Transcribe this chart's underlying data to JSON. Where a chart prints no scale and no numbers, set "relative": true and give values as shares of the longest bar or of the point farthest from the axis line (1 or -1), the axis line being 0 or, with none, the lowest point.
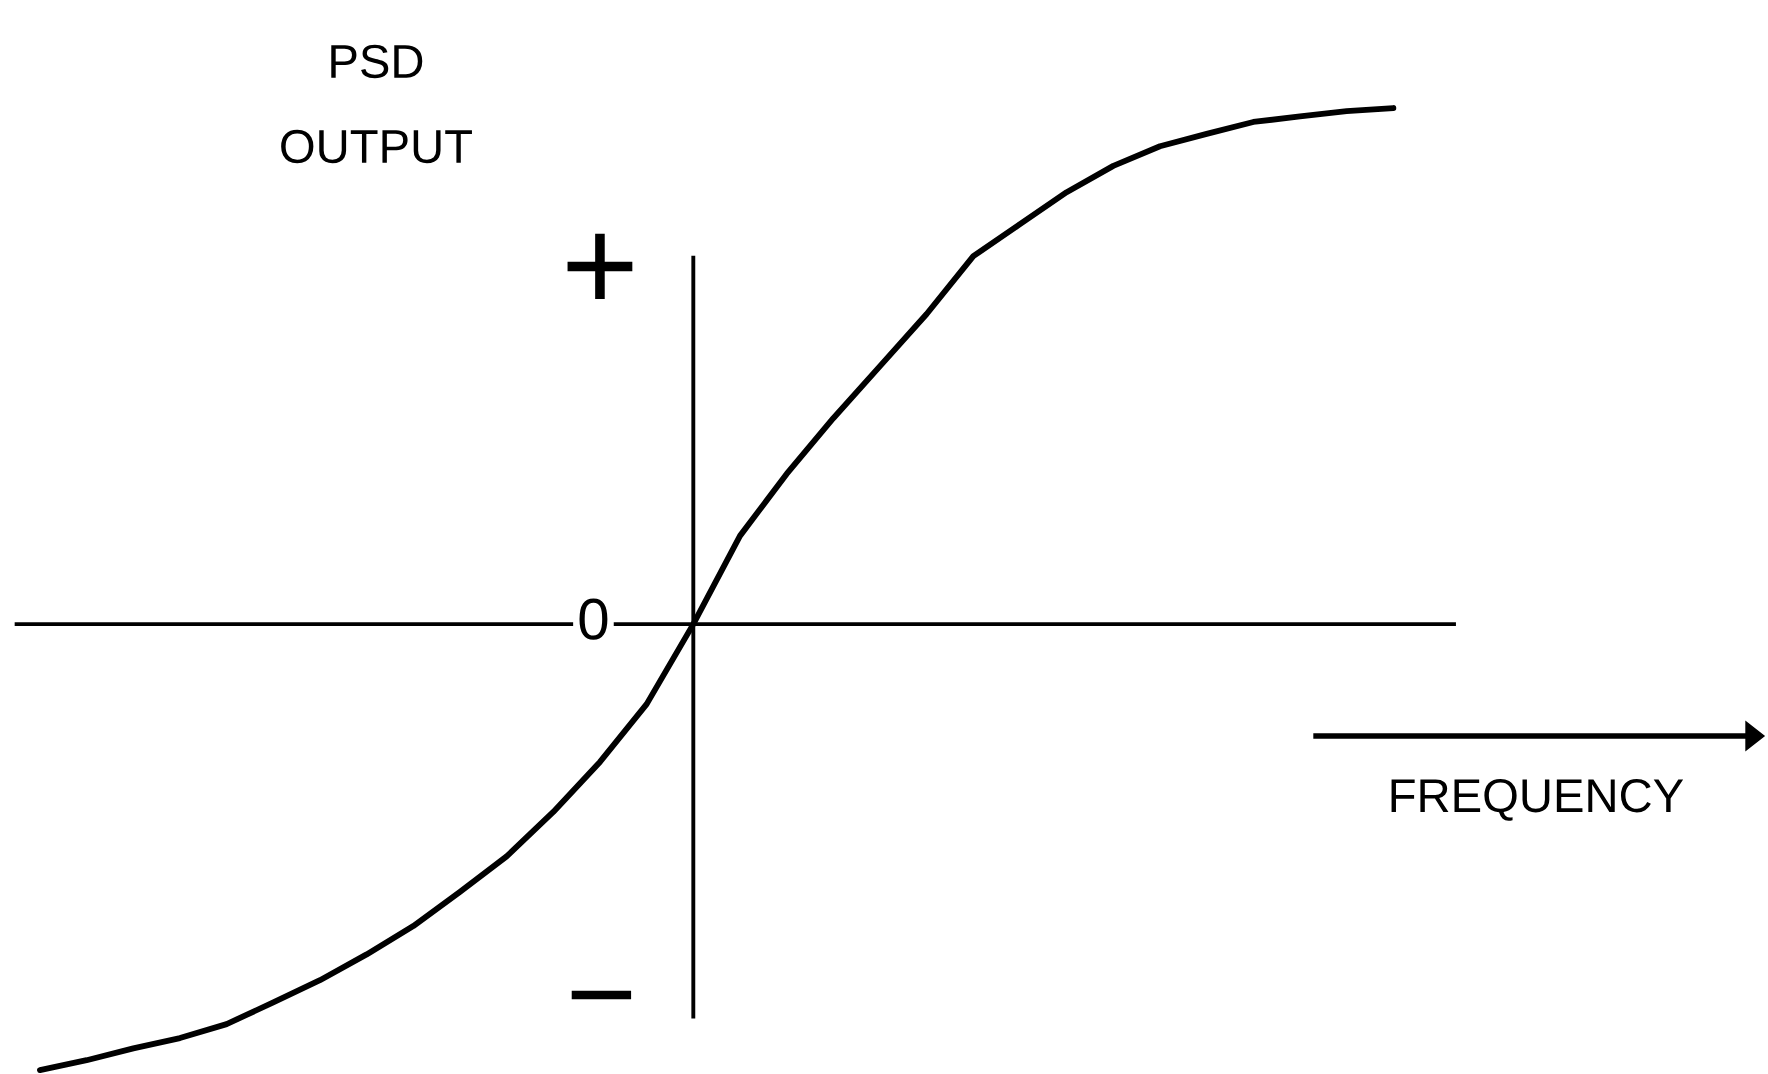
{
  "chart_data": {
    "type": "line",
    "relative": true,
    "xlabel": "FREQUENCY",
    "ylabel": "PSD\nOUTPUT",
    "annotations": [
      "+",
      "0",
      "−"
    ],
    "categories": [
      null,
      null,
      null,
      null,
      null,
      null,
      null,
      null,
      null,
      null,
      null,
      null,
      null,
      null,
      null,
      null,
      null,
      null,
      null,
      null,
      null,
      null,
      null,
      null,
      null,
      null,
      null,
      null,
      null,
      null
    ],
    "series": [
      {
        "color": "#000000",
        "values": [
          -0.864,
          -0.845,
          -0.822,
          -0.802,
          -0.775,
          -0.733,
          -0.69,
          -0.64,
          -0.585,
          -0.519,
          -0.45,
          -0.364,
          -0.267,
          -0.155,
          0,
          0.171,
          0.291,
          0.399,
          0.5,
          0.601,
          0.713,
          0.775,
          0.837,
          0.888,
          0.926,
          0.95,
          0.973,
          0.984,
          0.994,
          1.0
        ]
      }
    ]
  }
}
